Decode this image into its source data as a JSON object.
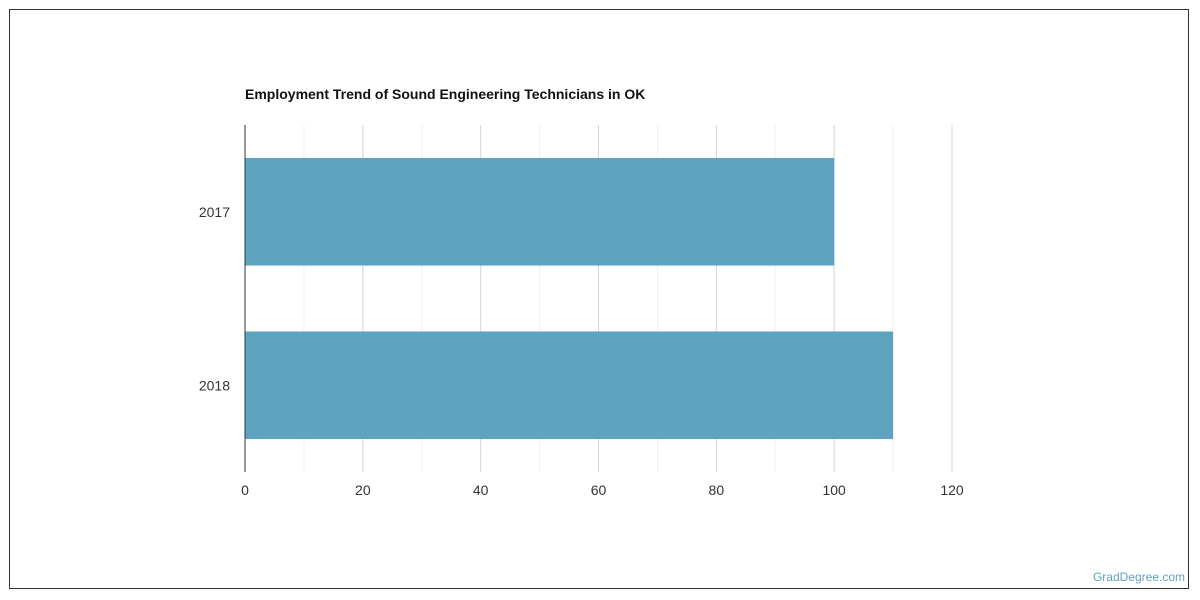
{
  "chart_data": {
    "type": "bar",
    "orientation": "horizontal",
    "title": "Employment Trend of Sound Engineering Technicians in OK",
    "categories": [
      "2017",
      "2018"
    ],
    "values": [
      100,
      110
    ],
    "xlim": [
      0,
      120
    ],
    "xticks": [
      "0",
      "20",
      "40",
      "60",
      "80",
      "100",
      "120"
    ],
    "xlabel": "",
    "ylabel": "",
    "grid": true,
    "bar_color": "#5ea3bf"
  },
  "watermark": "GradDegree.com"
}
